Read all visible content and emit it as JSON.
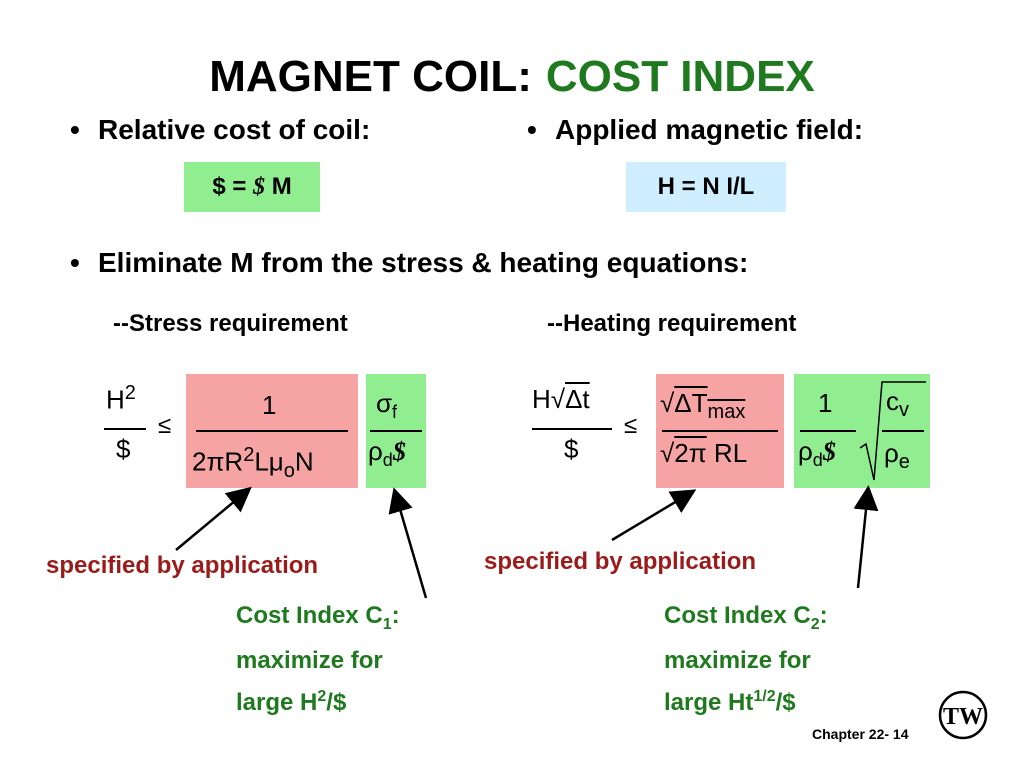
{
  "title": {
    "main": "MAGNET COIL:",
    "accent": "COST INDEX"
  },
  "bullets": {
    "relative_cost": "Relative cost of  coil:",
    "applied_field": "Applied magnetic field:",
    "eliminate": "Eliminate M from the stress & heating equations:"
  },
  "boxes": {
    "cost_eq": {
      "lhs": "$ =",
      "mid": "$",
      "rhs": "M"
    },
    "field_eq": "H = N I/L"
  },
  "requirements": {
    "stress": "--Stress requirement",
    "heating": "--Heating requirement"
  },
  "stress_equation": {
    "lhs_num_base": "H",
    "lhs_num_exp": "2",
    "lhs_den": "$",
    "relation": "≤",
    "pink_num": "1",
    "pink_den": [
      "2π",
      "R",
      "2",
      "L",
      "μ",
      "o",
      "N"
    ],
    "green_num_sym": "σ",
    "green_num_sub": "f",
    "green_den_sym": "ρ",
    "green_den_sub": "d",
    "green_den_cost": "$"
  },
  "heating_equation": {
    "lhs_num": [
      "H",
      "√",
      "Δt"
    ],
    "lhs_den": "$",
    "relation": "≤",
    "pink_num": [
      "√",
      "ΔT",
      "max"
    ],
    "pink_den": [
      "√",
      "2π",
      "RL"
    ],
    "green_frac_num": "1",
    "green_frac_den_sym": "ρ",
    "green_frac_den_sub": "d",
    "green_frac_den_cost": "$",
    "green_root_num_sym": "c",
    "green_root_num_sub": "v",
    "green_root_den_sym": "ρ",
    "green_root_den_sub": "e"
  },
  "annotations": {
    "specified_left": "specified by application",
    "specified_right": "specified by application",
    "cost_index_1": {
      "line1_prefix": "Cost Index C",
      "line1_sub": "1",
      "line1_suffix": ":",
      "line2": "maximize for",
      "line3_prefix": "large H",
      "line3_sup": "2",
      "line3_suffix": "/$"
    },
    "cost_index_2": {
      "line1_prefix": "Cost Index C",
      "line1_sub": "2",
      "line1_suffix": ":",
      "line2": "maximize for",
      "line3_prefix": "large Ht",
      "line3_sup": "1/2",
      "line3_suffix": "/$"
    }
  },
  "footer": {
    "chapter": "Chapter 22- 14"
  },
  "logo": {
    "letters": "TW"
  },
  "colors": {
    "accent_green": "#1f7a1f",
    "box_green": "#90ee90",
    "box_blue": "#cfeeff",
    "box_pink": "#f5a3a3",
    "label_red": "#9b1b1b"
  }
}
